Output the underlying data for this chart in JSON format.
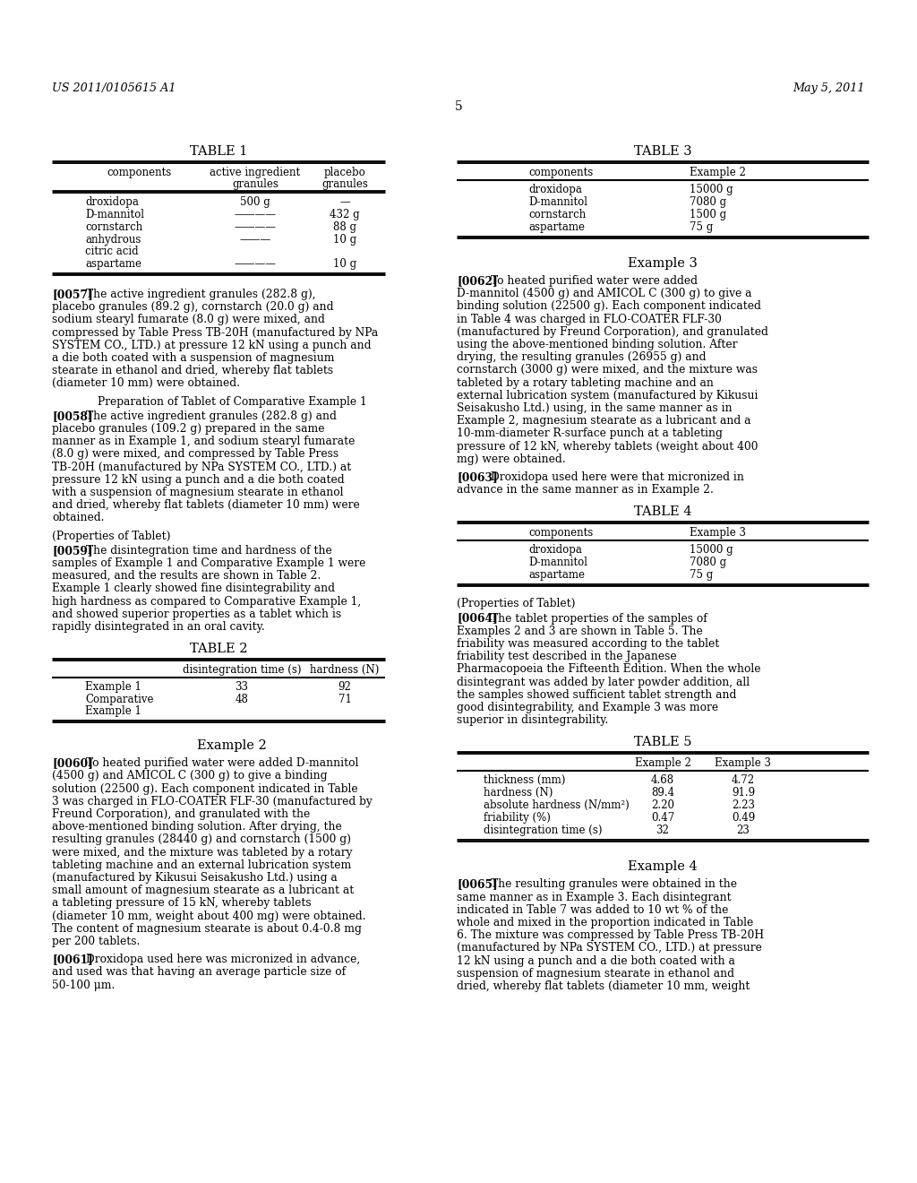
{
  "bg_color": "#ffffff",
  "header_left": "US 2011/0105615 A1",
  "header_right": "May 5, 2011",
  "page_number": "5",
  "table1_title": "TABLE 1",
  "table1_rows": [
    [
      "droxidopa",
      "500 g",
      "—"
    ],
    [
      "D-mannitol",
      "————",
      "432 g"
    ],
    [
      "cornstarch",
      "————",
      "88 g"
    ],
    [
      "anhydrous\ncitric acid",
      "———",
      "10 g"
    ],
    [
      "aspartame",
      "————",
      "10 g"
    ]
  ],
  "para0057_tag": "[0057]",
  "para0057_body": "  The active ingredient granules (282.8 g), placebo granules (89.2 g), cornstarch (20.0 g) and sodium stearyl fumarate (8.0 g) were mixed, and compressed by Table Press TB-20H (manufactured by NPa SYSTEM CO., LTD.) at pressure 12 kN using a punch and a die both coated with a suspension of magnesium stearate in ethanol and dried, whereby flat tablets (diameter 10 mm) were obtained.",
  "sub_heading1": "Preparation of Tablet of Comparative Example 1",
  "para0058_tag": "[0058]",
  "para0058_body": "  The active ingredient granules (282.8 g) and placebo granules (109.2 g) prepared in the same manner as in Example 1, and sodium stearyl fumarate (8.0 g) were mixed, and compressed by Table Press TB-20H (manufactured by NPa SYSTEM CO., LTD.) at pressure 12 kN using a punch and a die both coated with a suspension of magnesium stearate in ethanol and dried, whereby flat tablets (diameter 10 mm) were obtained.",
  "sub_heading2": "(Properties of Tablet)",
  "para0059_tag": "[0059]",
  "para0059_body": "  The disintegration time and hardness of the samples of Example 1 and Comparative Example 1 were measured, and the results are shown in Table 2. Example 1 clearly showed fine disintegrability and high hardness as compared to Comparative Example 1, and showed superior properties as a tablet which is rapidly disintegrated in an oral cavity.",
  "table2_title": "TABLE 2",
  "table2_rows": [
    [
      "Example 1",
      "33",
      "92"
    ],
    [
      "Comparative\nExample 1",
      "48",
      "71"
    ]
  ],
  "sub_heading3": "Example 2",
  "para0060_tag": "[0060]",
  "para0060_body": "  To heated purified water were added D-mannitol (4500 g) and AMICOL C (300 g) to give a binding solution (22500 g). Each component indicated in Table 3 was charged in FLO-COATER FLF-30 (manufactured by Freund Corporation), and granulated with the above-mentioned binding solution. After drying, the resulting granules (28440 g) and cornstarch (1500 g) were mixed, and the mixture was tableted by a rotary tableting machine and an external lubrication system (manufactured by Kikusui Seisakusho Ltd.) using a small amount of magnesium stearate as a lubricant at a tableting pressure of 15 kN, whereby tablets (diameter 10 mm, weight about 400 mg) were obtained. The content of magnesium stearate is about 0.4-0.8 mg per 200 tablets.",
  "para0061_tag": "[0061]",
  "para0061_body": "  Droxidopa used here was micronized in advance, and used was that having an average particle size of 50-100 μm.",
  "table3_title": "TABLE 3",
  "table3_rows": [
    [
      "droxidopa",
      "15000 g"
    ],
    [
      "D-mannitol",
      "7080 g"
    ],
    [
      "cornstarch",
      "1500 g"
    ],
    [
      "aspartame",
      "75 g"
    ]
  ],
  "sub_heading4": "Example 3",
  "para0062_tag": "[0062]",
  "para0062_body": "  To heated purified water were added D-mannitol (4500 g) and AMICOL C (300 g) to give a binding solution (22500 g). Each component indicated in Table 4 was charged in FLO-COATER FLF-30 (manufactured by Freund Corporation), and granulated using the above-mentioned binding solution. After drying, the resulting granules (26955 g) and cornstarch (3000 g) were mixed, and the mixture was tableted by a rotary tableting machine and an external lubrication system (manufactured by Kikusui Seisakusho Ltd.) using, in the same manner as in Example 2, magnesium stearate as a lubricant and a 10-mm-diameter R-surface punch at a tableting pressure of 12 kN, whereby tablets (weight about 400 mg) were obtained.",
  "para0063_tag": "[0063]",
  "para0063_body": "  Droxidopa used here were that micronized in advance in the same manner as in Example 2.",
  "table4_title": "TABLE 4",
  "table4_rows": [
    [
      "droxidopa",
      "15000 g"
    ],
    [
      "D-mannitol",
      "7080 g"
    ],
    [
      "aspartame",
      "75 g"
    ]
  ],
  "sub_heading5": "(Properties of Tablet)",
  "para0064_tag": "[0064]",
  "para0064_body": "  The tablet properties of the samples of Examples 2 and 3 are shown in Table 5. The friability was measured according to the tablet friability test described in the Japanese Pharmacopoeia the Fifteenth Edition. When the whole disintegrant was added by later powder addition, all the samples showed sufficient tablet strength and good disintegrability, and Example 3 was more superior in disintegrability.",
  "table5_title": "TABLE 5",
  "table5_rows": [
    [
      "thickness (mm)",
      "4.68",
      "4.72"
    ],
    [
      "hardness (N)",
      "89.4",
      "91.9"
    ],
    [
      "absolute hardness (N/mm²)",
      "2.20",
      "2.23"
    ],
    [
      "friability (%)",
      "0.47",
      "0.49"
    ],
    [
      "disintegration time (s)",
      "32",
      "23"
    ]
  ],
  "sub_heading6": "Example 4",
  "para0065_tag": "[0065]",
  "para0065_body": "  The resulting granules were obtained in the same manner as in Example 3. Each disintegrant indicated in Table 7 was added to 10 wt % of the whole and mixed in the proportion indicated in Table 6. The mixture was compressed by Table Press TB-20H (manufactured by NPa SYSTEM CO., LTD.) at pressure 12 kN using a punch and a die both coated with a suspension of magnesium stearate in ethanol and dried, whereby flat tablets (diameter 10 mm, weight"
}
